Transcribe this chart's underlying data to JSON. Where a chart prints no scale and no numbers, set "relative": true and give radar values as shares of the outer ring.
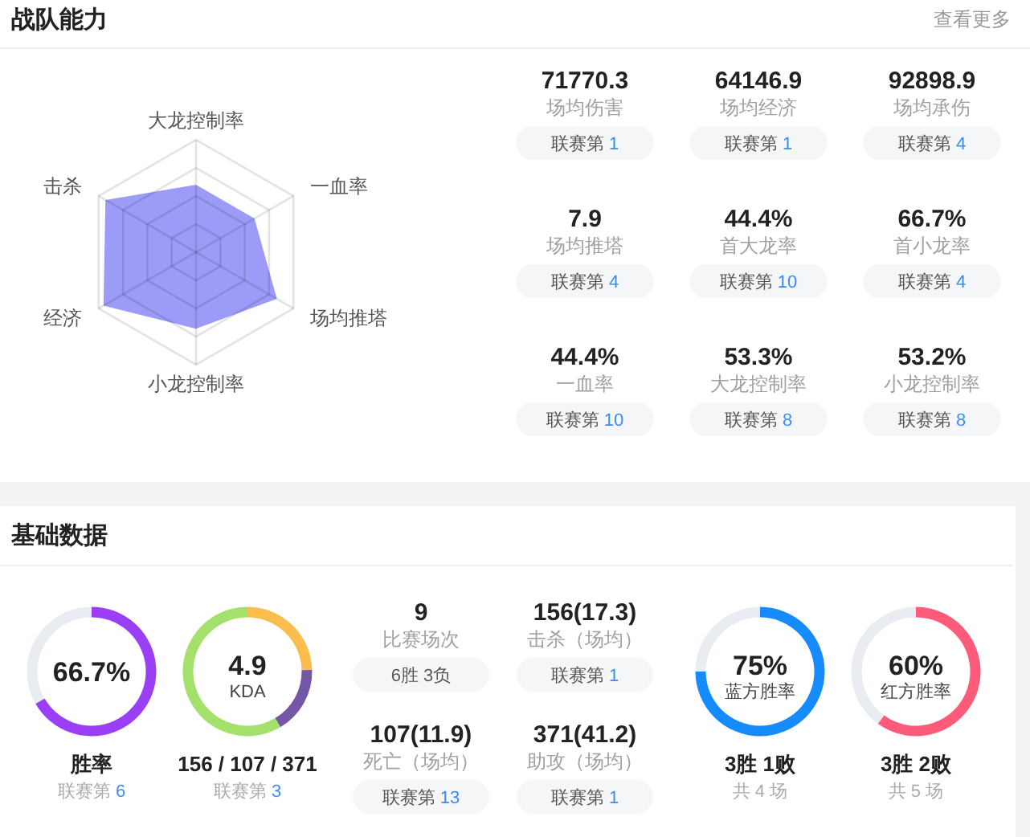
{
  "chart_data": [
    {
      "type": "radar",
      "title": "战队能力",
      "annotations": [
        "查看更多"
      ],
      "categories": [
        "大龙控制率",
        "一血率",
        "场均推塔",
        "小龙控制率",
        "经济",
        "击杀"
      ],
      "relative": true,
      "grid": true,
      "series": [
        {
          "color": "#9c9cf8",
          "values": [
            0.6,
            0.6,
            0.83,
            0.68,
            0.95,
            0.93
          ]
        }
      ]
    },
    {
      "type": "other",
      "annotations": [
        "71770.3",
        "场均伤害",
        "联赛第 1",
        "64146.9",
        "场均经济",
        "联赛第 1",
        "92898.9",
        "场均承伤",
        "联赛第 4",
        "7.9",
        "场均推塔",
        "联赛第 4",
        "44.4%",
        "首大龙率",
        "联赛第 10",
        "66.7%",
        "首小龙率",
        "联赛第 4",
        "44.4%",
        "一血率",
        "联赛第 10",
        "53.3%",
        "大龙控制率",
        "联赛第 8",
        "53.2%",
        "小龙控制率",
        "联赛第 8"
      ]
    },
    {
      "type": "other",
      "title": "基础数据",
      "annotations": [
        "9",
        "比赛场次",
        "6胜 3负",
        "156(17.3)",
        "击杀（场均）",
        "联赛第 1",
        "107(11.9)",
        "死亡（场均）",
        "联赛第 13",
        "371(41.2)",
        "助攻（场均）",
        "联赛第 1"
      ]
    },
    {
      "type": "donut",
      "categories": [
        null,
        null
      ],
      "values": [
        66.7,
        33.3
      ],
      "colors": [
        "#9b3ff6",
        "#e9ecf1"
      ],
      "annotations": [
        "66.7%"
      ],
      "title": "胜率",
      "subtitle": "联赛第 6"
    },
    {
      "type": "donut",
      "categories": [
        null,
        null,
        null
      ],
      "values": [
        24.6,
        16.9,
        58.5
      ],
      "colors": [
        "#fcbd4f",
        "#7456a6",
        "#a4e06c"
      ],
      "annotations": [
        "4.9",
        "KDA"
      ],
      "title": "156 / 107 / 371",
      "subtitle": "联赛第 3"
    },
    {
      "type": "donut",
      "categories": [
        null,
        null
      ],
      "values": [
        75,
        25
      ],
      "colors": [
        "#168bfd",
        "#e9ecf1"
      ],
      "annotations": [
        "75%",
        "蓝方胜率"
      ],
      "title": "3胜 1败",
      "subtitle": "共 4 场"
    },
    {
      "type": "donut",
      "categories": [
        null,
        null
      ],
      "values": [
        60,
        40
      ],
      "colors": [
        "#fd5b79",
        "#e9ecf1"
      ],
      "annotations": [
        "60%",
        "红方胜率"
      ],
      "title": "3胜 2败",
      "subtitle": "共 5 场"
    }
  ]
}
